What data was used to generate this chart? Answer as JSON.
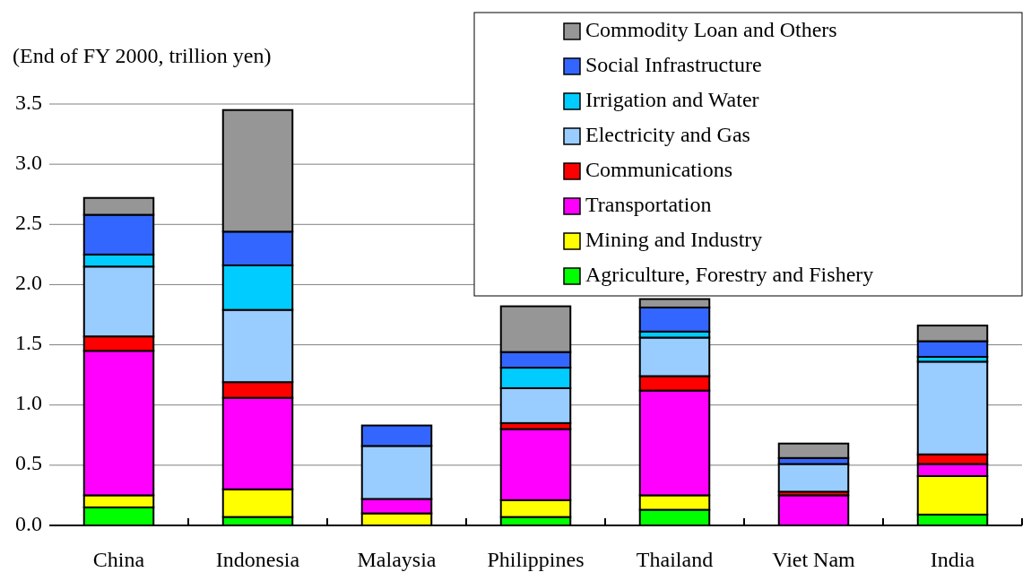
{
  "chart_data": {
    "type": "bar",
    "stacked": true,
    "ylabel": "(End of FY 2000, trillion yen)",
    "categories": [
      "China",
      "Indonesia",
      "Malaysia",
      "Philippines",
      "Thailand",
      "Viet Nam",
      "India"
    ],
    "series": [
      {
        "name": "Agriculture, Forestry and Fishery",
        "color": "#00ff00",
        "values": [
          0.15,
          0.07,
          0,
          0.07,
          0.13,
          0,
          0.09
        ]
      },
      {
        "name": "Mining and Industry",
        "color": "#ffff00",
        "values": [
          0.1,
          0.23,
          0.1,
          0.14,
          0.12,
          0,
          0.32
        ]
      },
      {
        "name": "Transportation",
        "color": "#ff00ff",
        "values": [
          1.2,
          0.76,
          0.12,
          0.59,
          0.87,
          0.25,
          0.1
        ]
      },
      {
        "name": "Communications",
        "color": "#ff0000",
        "values": [
          0.12,
          0.13,
          0,
          0.05,
          0.12,
          0.03,
          0.08
        ]
      },
      {
        "name": "Electricity and Gas",
        "color": "#99ccff",
        "values": [
          0.58,
          0.6,
          0.44,
          0.29,
          0.32,
          0.23,
          0.77
        ]
      },
      {
        "name": "Irrigation and Water",
        "color": "#00ccff",
        "values": [
          0.1,
          0.37,
          0,
          0.17,
          0.05,
          0,
          0.04
        ]
      },
      {
        "name": "Social Infrastructure",
        "color": "#3366ff",
        "values": [
          0.33,
          0.28,
          0.17,
          0.13,
          0.2,
          0.05,
          0.13
        ]
      },
      {
        "name": "Commodity Loan and Others",
        "color": "#969696",
        "values": [
          0.14,
          1.01,
          0,
          0.38,
          0.07,
          0.12,
          0.13
        ]
      }
    ],
    "ylim": [
      0,
      3.5
    ],
    "yticks": [
      {
        "value": 0,
        "label": "0.0"
      },
      {
        "value": 0.5,
        "label": "0.5"
      },
      {
        "value": 1,
        "label": "1.0"
      },
      {
        "value": 1.5,
        "label": "1.5"
      },
      {
        "value": 2,
        "label": "2.0"
      },
      {
        "value": 2.5,
        "label": "2.5"
      },
      {
        "value": 3,
        "label": "3.0"
      },
      {
        "value": 3.5,
        "label": "3.5"
      }
    ],
    "grid": "y",
    "legend": "top right"
  }
}
